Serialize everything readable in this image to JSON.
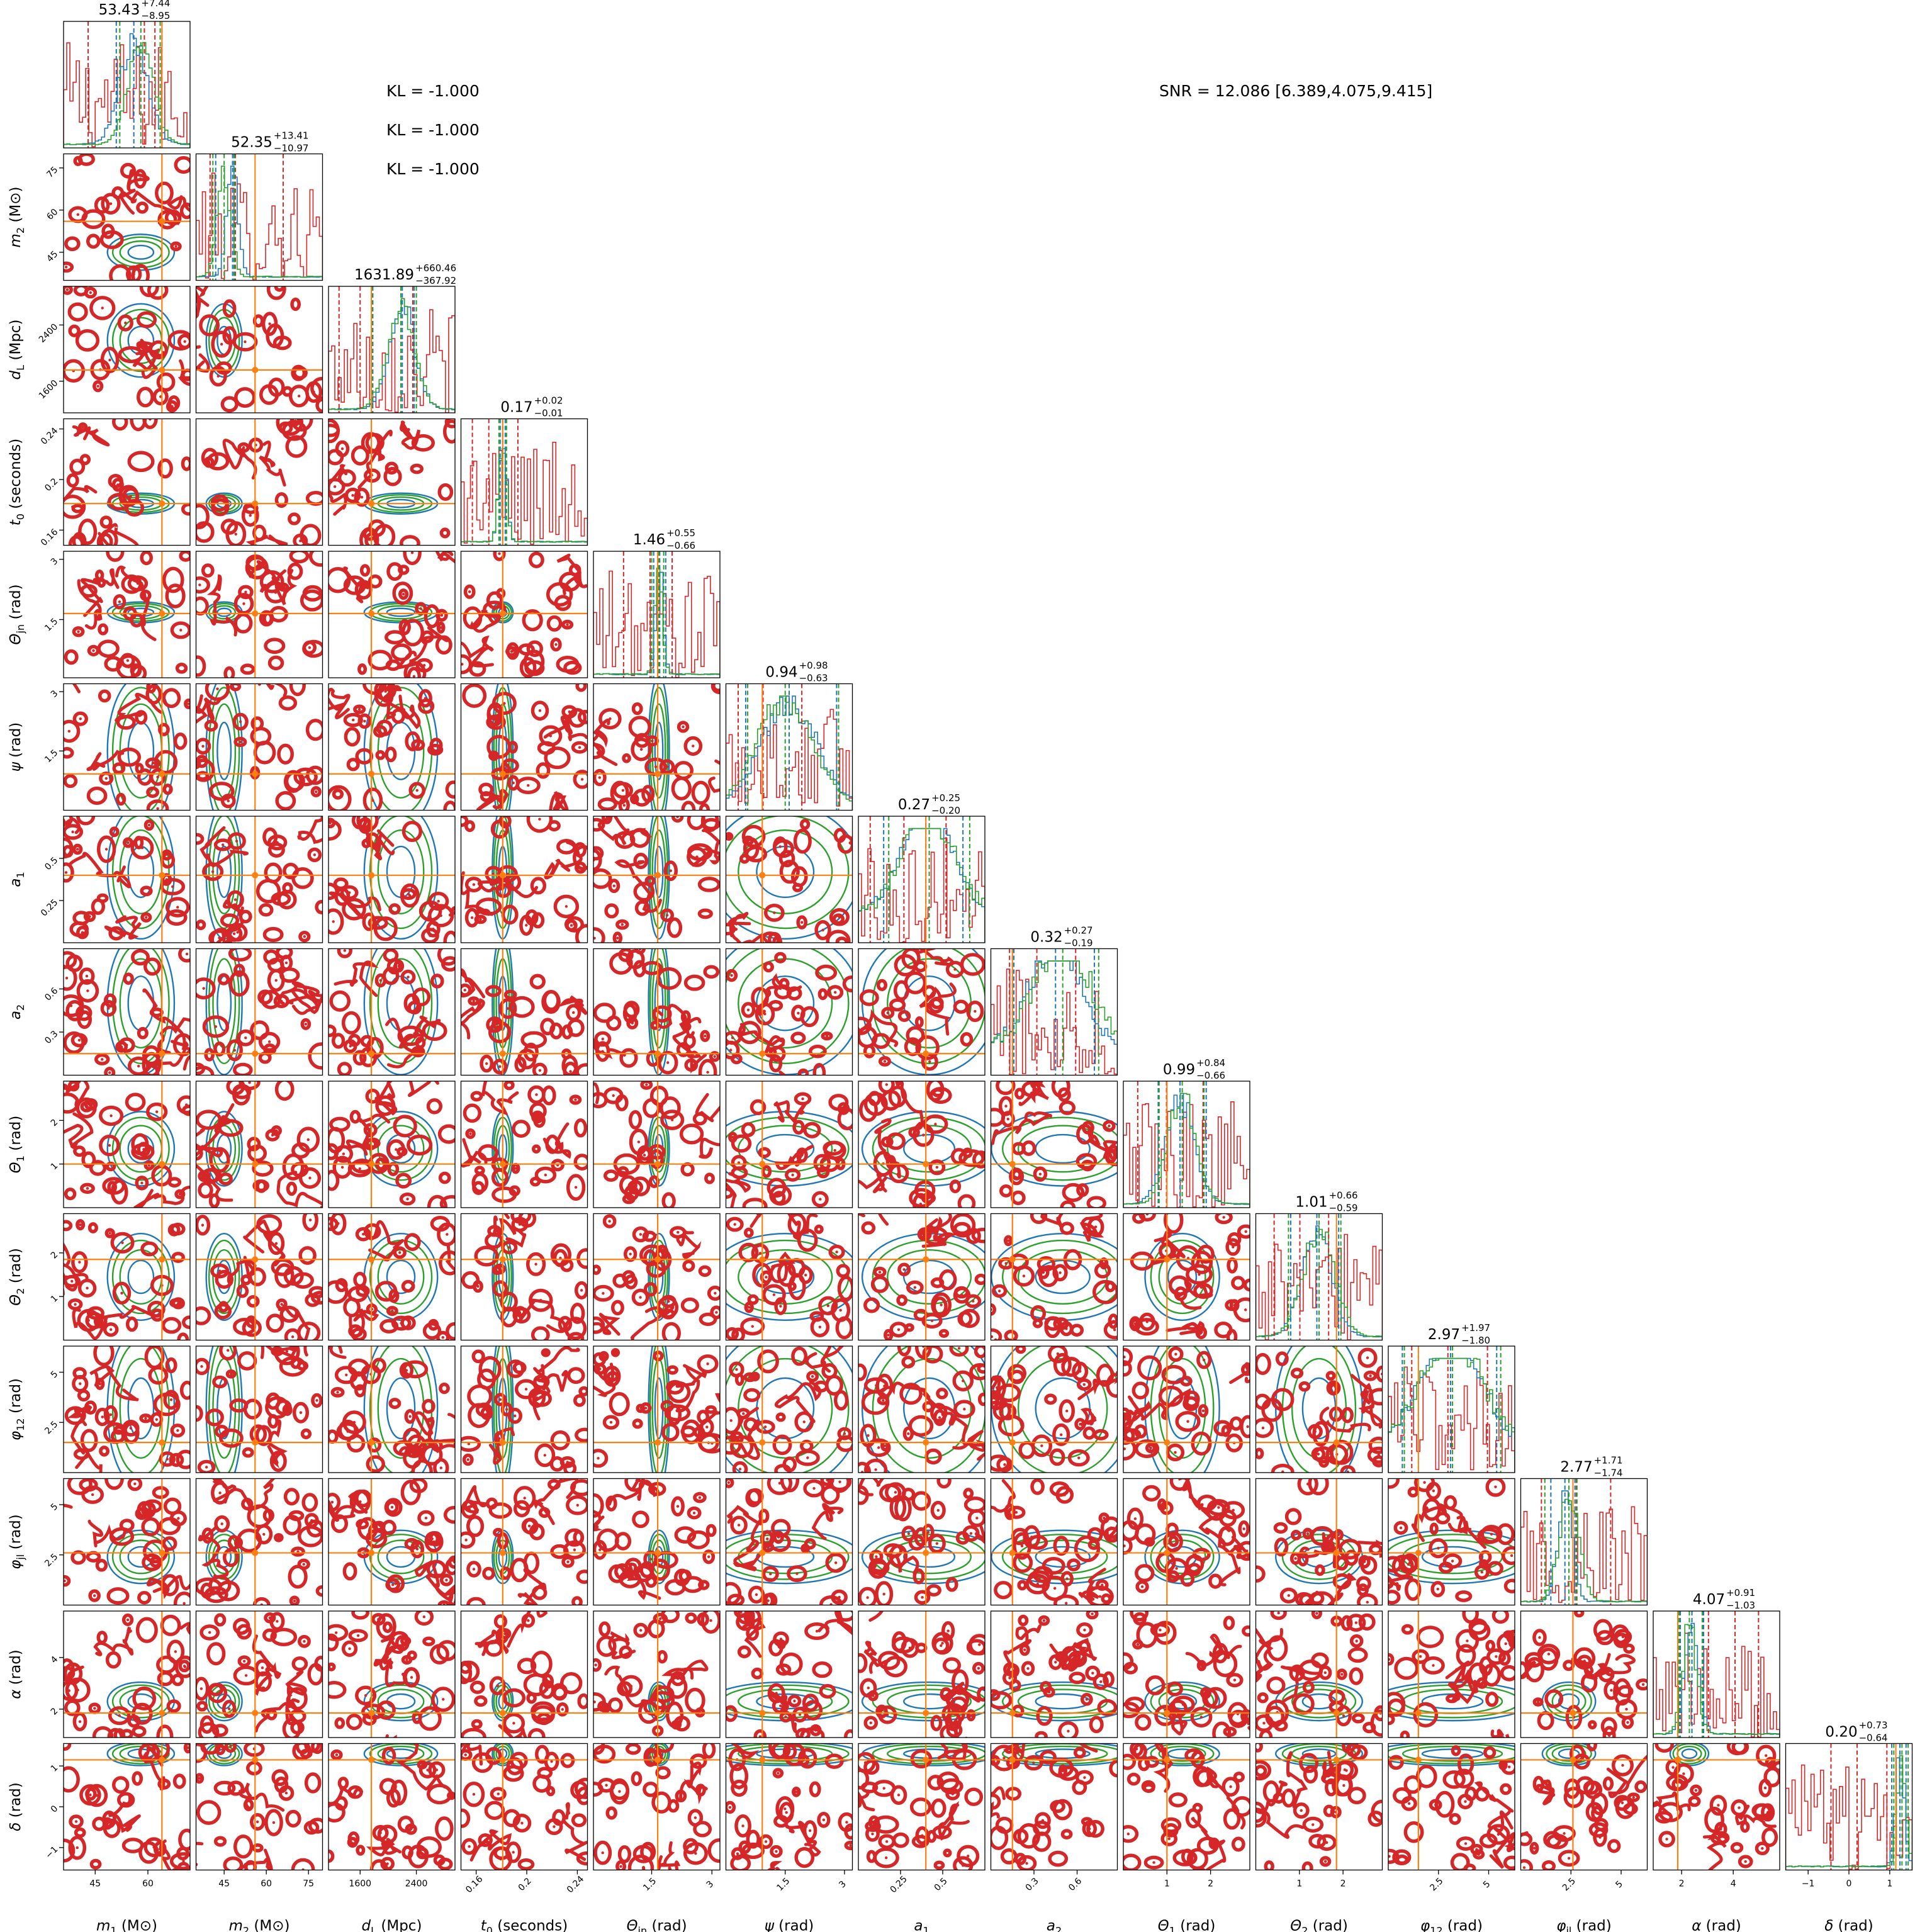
{
  "annotations": {
    "kl_lines": [
      "KL = -1.000",
      "KL = -1.000",
      "KL = -1.000"
    ],
    "snr": "SNR = 12.086 [6.389,4.075,9.415]"
  },
  "colors": {
    "red": "#d62728",
    "blue": "#1f77b4",
    "green": "#2ca02c",
    "orange": "#ff7f0e"
  },
  "chart_data": {
    "type": "corner",
    "parameters": [
      {
        "label": "m_1 (M⊙)",
        "main": "m",
        "sub": "1",
        "unit": " (M⊙)",
        "range": [
          36,
          72
        ],
        "ticks": [
          45,
          60
        ],
        "tick_rotate": 0,
        "truth": 64.0,
        "median": 53.43,
        "plus": "7.44",
        "minus": "8.95",
        "title_text": "53.43 +7.44 −8.95",
        "q_red": [
          43,
          59,
          62
        ],
        "q_blue": [
          51,
          56,
          64
        ],
        "q_green": [
          52,
          58,
          63.5
        ]
      },
      {
        "label": "m_2 (M⊙)",
        "main": "m",
        "sub": "2",
        "unit": " (M⊙)",
        "range": [
          35,
          80
        ],
        "ticks": [
          45,
          60,
          75
        ],
        "tick_rotate": 0,
        "truth": 56.0,
        "median": 52.35,
        "plus": "13.41",
        "minus": "10.97",
        "title_text": "52.35 +13.41 −10.97",
        "q_red": [
          40,
          49,
          66
        ],
        "q_blue": [
          42,
          48,
          48.5
        ],
        "q_green": [
          41,
          45,
          48.7
        ]
      },
      {
        "label": "d_L (Mpc)",
        "main": "d",
        "sub": "L",
        "unit": " (Mpc)",
        "range": [
          1150,
          2950
        ],
        "ticks": [
          1600,
          2400
        ],
        "tick_rotate": 0,
        "truth": 1760,
        "median": 1631.89,
        "plus": "660.46",
        "minus": "367.92",
        "title_text": "1631.89 +660.46 −367.92",
        "q_red": [
          1300,
          1600,
          2350
        ],
        "q_blue": [
          1780,
          2200,
          2370
        ],
        "q_green": [
          1770,
          2180,
          2400
        ]
      },
      {
        "label": "t_0 (seconds)",
        "main": "t",
        "sub": "0",
        "unit": " (seconds)",
        "range": [
          0.148,
          0.248
        ],
        "ticks": [
          0.16,
          0.2,
          0.24
        ],
        "tick_rotate": 45,
        "truth": 0.181,
        "median": 0.17,
        "plus": "0.02",
        "minus": "0.01",
        "title_text": "0.17 +0.02 −0.01",
        "q_red": [
          0.157,
          0.17,
          0.193
        ],
        "q_blue": [
          0.179,
          0.181,
          0.183
        ],
        "q_green": [
          0.178,
          0.181,
          0.184
        ]
      },
      {
        "label": "Θ_jn (rad)",
        "main": "Θ",
        "sub": "jn",
        "unit": " (rad)",
        "range": [
          0.05,
          3.2
        ],
        "ticks": [
          1.5,
          3.0
        ],
        "tick_rotate": 45,
        "truth": 1.65,
        "median": 1.46,
        "plus": "0.55",
        "minus": "0.66",
        "title_text": "1.46 +0.55 −0.66",
        "q_red": [
          0.8,
          1.46,
          2.01
        ],
        "q_blue": [
          1.55,
          1.7,
          1.85
        ],
        "q_green": [
          1.5,
          1.68,
          1.8
        ]
      },
      {
        "label": "ψ (rad)",
        "main": "ψ",
        "sub": "",
        "unit": " (rad)",
        "range": [
          0.0,
          3.2
        ],
        "ticks": [
          1.5,
          3.0
        ],
        "tick_rotate": 45,
        "truth": 0.92,
        "median": 0.94,
        "plus": "0.98",
        "minus": "0.63",
        "title_text": "0.94 +0.98 −0.63",
        "q_red": [
          0.31,
          0.94,
          1.92
        ],
        "q_blue": [
          0.5,
          1.6,
          2.8
        ],
        "q_green": [
          0.55,
          1.5,
          2.85
        ]
      },
      {
        "label": "a_1",
        "main": "a",
        "sub": "1",
        "unit": "",
        "range": [
          0.0,
          0.75
        ],
        "ticks": [
          0.25,
          0.5
        ],
        "tick_rotate": 45,
        "truth": 0.4,
        "median": 0.27,
        "plus": "0.25",
        "minus": "0.20",
        "title_text": "0.27 +0.25 −0.20",
        "q_red": [
          0.07,
          0.27,
          0.52
        ],
        "q_blue": [
          0.15,
          0.4,
          0.62
        ],
        "q_green": [
          0.18,
          0.42,
          0.66
        ]
      },
      {
        "label": "a_2",
        "main": "a",
        "sub": "2",
        "unit": "",
        "range": [
          0.0,
          0.88
        ],
        "ticks": [
          0.3,
          0.6
        ],
        "tick_rotate": 45,
        "truth": 0.15,
        "median": 0.32,
        "plus": "0.27",
        "minus": "0.19",
        "title_text": "0.32 +0.27 −0.19",
        "q_red": [
          0.13,
          0.32,
          0.59
        ],
        "q_blue": [
          0.16,
          0.45,
          0.72
        ],
        "q_green": [
          0.15,
          0.5,
          0.75
        ]
      },
      {
        "label": "Θ_1 (rad)",
        "main": "Θ",
        "sub": "1",
        "unit": " (rad)",
        "range": [
          0.0,
          2.9
        ],
        "ticks": [
          1,
          2
        ],
        "tick_rotate": 0,
        "truth": 1.0,
        "median": 0.99,
        "plus": "0.84",
        "minus": "0.66",
        "title_text": "0.99 +0.84 −0.66",
        "q_red": [
          0.33,
          0.99,
          1.83
        ],
        "q_blue": [
          0.8,
          1.3,
          1.9
        ],
        "q_green": [
          0.82,
          1.35,
          1.85
        ]
      },
      {
        "label": "Θ_2 (rad)",
        "main": "Θ",
        "sub": "2",
        "unit": " (rad)",
        "range": [
          0.0,
          2.9
        ],
        "ticks": [
          1,
          2
        ],
        "tick_rotate": 0,
        "truth": 1.85,
        "median": 1.01,
        "plus": "0.66",
        "minus": "0.59",
        "title_text": "1.01 +0.66 −0.59",
        "q_red": [
          0.42,
          1.01,
          1.67
        ],
        "q_blue": [
          0.8,
          1.4,
          1.9
        ],
        "q_green": [
          0.75,
          1.45,
          1.95
        ]
      },
      {
        "label": "φ_12 (rad)",
        "main": "φ",
        "sub": "12",
        "unit": " (rad)",
        "range": [
          0.0,
          6.3
        ],
        "ticks": [
          2.5,
          5.0
        ],
        "tick_rotate": 45,
        "truth": 1.5,
        "median": 2.97,
        "plus": "1.97",
        "minus": "1.80",
        "title_text": "2.97 +1.97 −1.80",
        "q_red": [
          1.17,
          2.97,
          4.94
        ],
        "q_blue": [
          0.7,
          3.1,
          5.4
        ],
        "q_green": [
          0.8,
          3.2,
          5.6
        ]
      },
      {
        "label": "φ_jl (rad)",
        "main": "φ",
        "sub": "jl",
        "unit": " (rad)",
        "range": [
          0.0,
          6.3
        ],
        "ticks": [
          2.5,
          5.0
        ],
        "tick_rotate": 45,
        "truth": 2.6,
        "median": 2.77,
        "plus": "1.71",
        "minus": "1.74",
        "title_text": "2.77 +1.71 −1.74",
        "q_red": [
          1.03,
          2.77,
          4.48
        ],
        "q_blue": [
          1.5,
          2.2,
          2.7
        ],
        "q_green": [
          1.2,
          2.4,
          2.8
        ]
      },
      {
        "label": "α (rad)",
        "main": "α",
        "sub": "",
        "unit": " (rad)",
        "range": [
          0.9,
          5.8
        ],
        "ticks": [
          2,
          4
        ],
        "tick_rotate": 0,
        "truth": 1.85,
        "median": 4.07,
        "plus": "0.91",
        "minus": "1.03",
        "title_text": "4.07 +0.91 −1.03",
        "q_red": [
          3.04,
          4.07,
          4.98
        ],
        "q_blue": [
          1.95,
          2.4,
          2.85
        ],
        "q_green": [
          1.9,
          2.3,
          2.8
        ]
      },
      {
        "label": "δ (rad)",
        "main": "δ",
        "sub": "",
        "unit": " (rad)",
        "range": [
          -1.55,
          1.55
        ],
        "ticks": [
          -1,
          0,
          1
        ],
        "tick_rotate": 0,
        "truth": 1.15,
        "median": 0.2,
        "plus": "0.73",
        "minus": "0.64",
        "title_text": "0.20 +0.73 −0.64",
        "q_red": [
          -0.44,
          0.2,
          0.93
        ],
        "q_blue": [
          1.05,
          1.25,
          1.4
        ],
        "q_green": [
          1.1,
          1.3,
          1.45
        ]
      }
    ]
  }
}
